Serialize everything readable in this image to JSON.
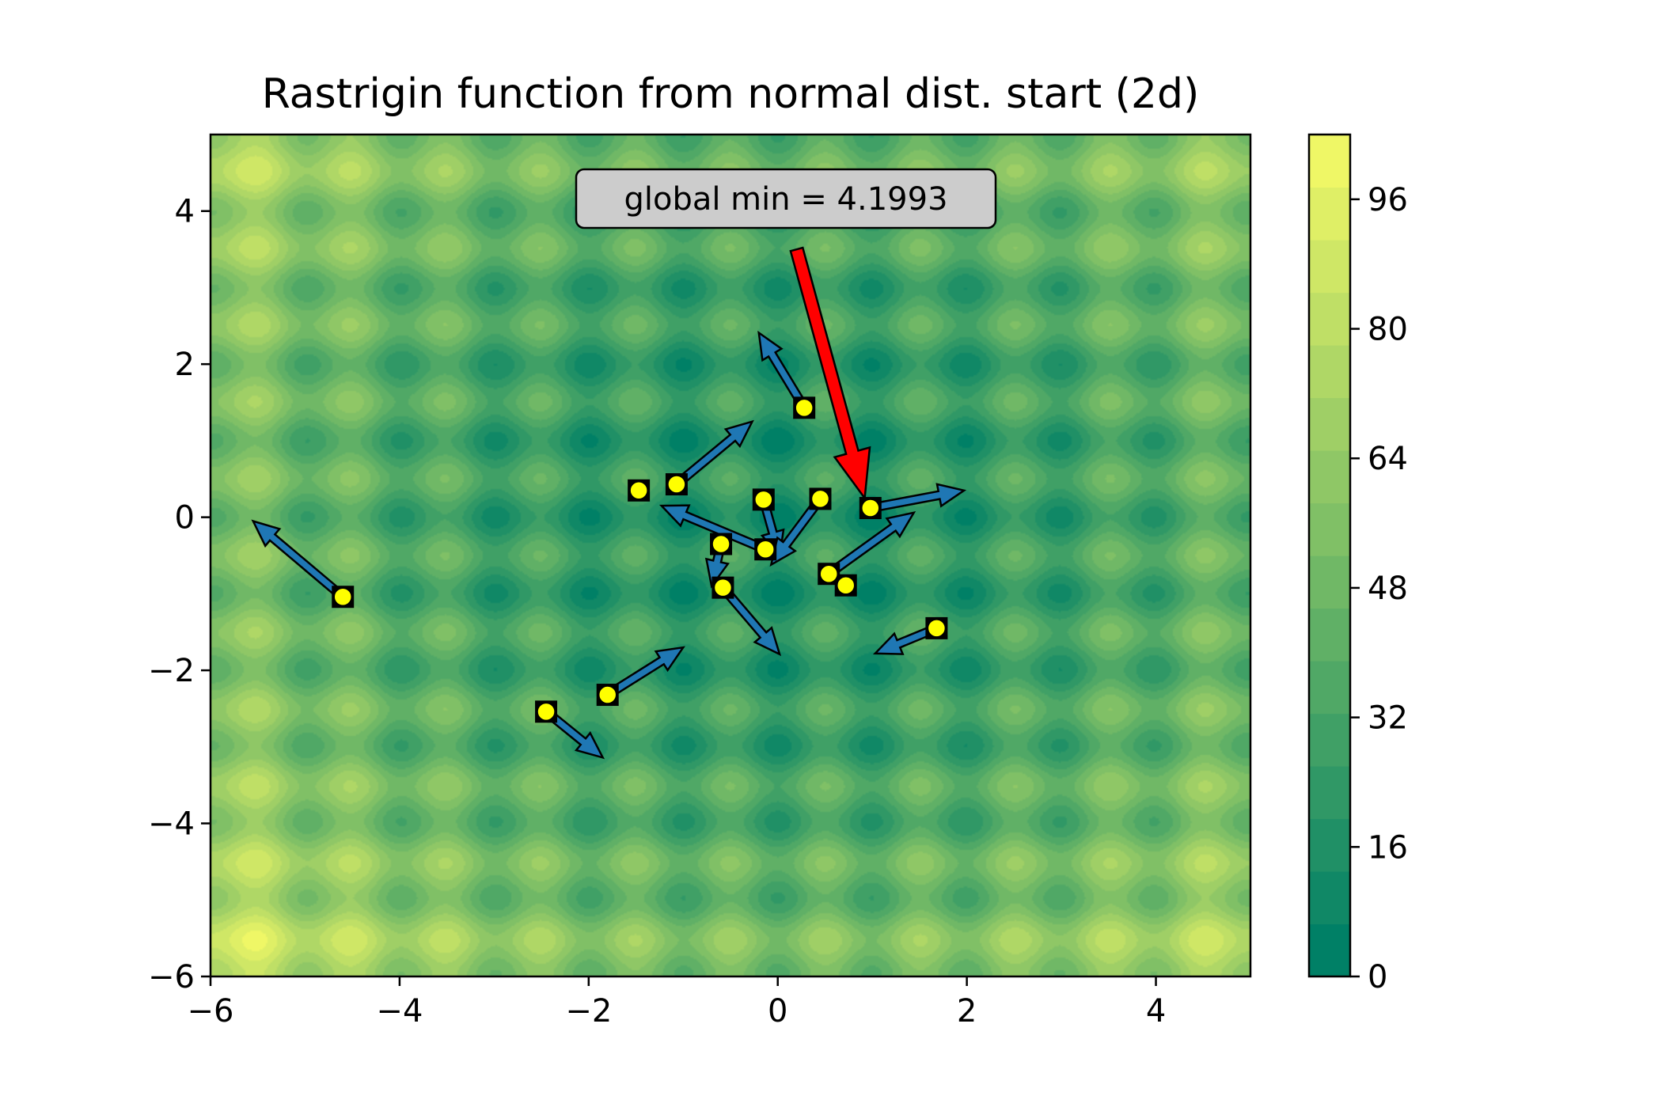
{
  "chart_data": {
    "type": "heatmap",
    "title": "Rastrigin function from normal dist. start (2d)",
    "xlabel": "",
    "ylabel": "",
    "xlim": [
      -6,
      5
    ],
    "ylim": [
      -6,
      5
    ],
    "x_ticks": [
      -6,
      -4,
      -2,
      0,
      2,
      4
    ],
    "x_tick_labels": [
      "−6",
      "−4",
      "−2",
      "0",
      "2",
      "4"
    ],
    "y_ticks": [
      -6,
      -4,
      -2,
      0,
      2,
      4
    ],
    "y_tick_labels": [
      "−6",
      "−4",
      "−2",
      "0",
      "2",
      "4"
    ],
    "function": "Rastrigin",
    "colormap": "summer",
    "colorbar": {
      "range": [
        0,
        104
      ],
      "levels": 17,
      "ticks": [
        0,
        16,
        32,
        48,
        64,
        80,
        96
      ],
      "tick_labels": [
        "0",
        "16",
        "32",
        "48",
        "64",
        "80",
        "96"
      ]
    },
    "annotation": {
      "text": "global min = 4.1993",
      "arrow_color": "#ff0000",
      "arrow_tail": [
        0.2,
        3.5
      ],
      "arrow_head": [
        0.92,
        0.25
      ]
    },
    "points": [
      {
        "x": 0.28,
        "y": 1.43,
        "dx": -0.48,
        "dy": 0.98
      },
      {
        "x": -1.07,
        "y": 0.43,
        "dx": 0.8,
        "dy": 0.82
      },
      {
        "x": -1.47,
        "y": 0.35,
        "dx": 0.0,
        "dy": 0.0
      },
      {
        "x": -0.15,
        "y": 0.23,
        "dx": 0.17,
        "dy": -0.75
      },
      {
        "x": 0.45,
        "y": 0.24,
        "dx": -0.52,
        "dy": -0.86
      },
      {
        "x": 0.98,
        "y": 0.12,
        "dx": 0.99,
        "dy": 0.23
      },
      {
        "x": -0.13,
        "y": -0.42,
        "dx": -1.1,
        "dy": 0.57
      },
      {
        "x": -0.6,
        "y": -0.35,
        "dx": -0.1,
        "dy": -0.55
      },
      {
        "x": -0.58,
        "y": -0.92,
        "dx": 0.6,
        "dy": -0.87
      },
      {
        "x": 0.54,
        "y": -0.74,
        "dx": 0.9,
        "dy": 0.8
      },
      {
        "x": 0.72,
        "y": -0.89,
        "dx": 0.0,
        "dy": 0.0
      },
      {
        "x": 1.68,
        "y": -1.45,
        "dx": -0.65,
        "dy": -0.33
      },
      {
        "x": -4.6,
        "y": -1.04,
        "dx": -0.95,
        "dy": 0.99
      },
      {
        "x": -1.8,
        "y": -2.32,
        "dx": 0.8,
        "dy": 0.62
      },
      {
        "x": -2.45,
        "y": -2.54,
        "dx": 0.6,
        "dy": -0.6
      }
    ],
    "point_fill": "#ffff00",
    "point_edge": "#000000",
    "arrow_fill": "#1f77b4",
    "grid": false,
    "legend": "none"
  }
}
